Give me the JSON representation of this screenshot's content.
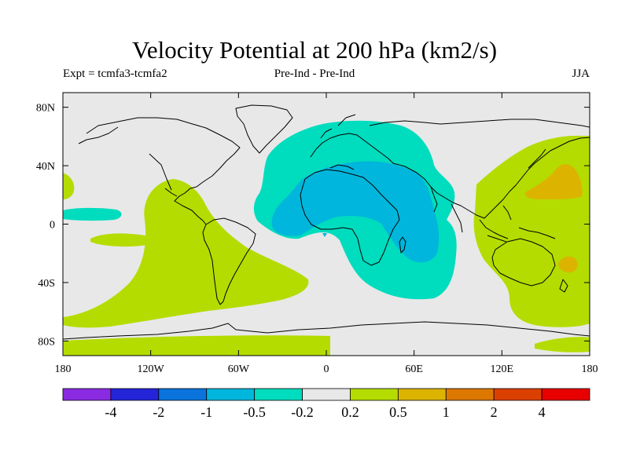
{
  "chart_data": {
    "type": "contour-map",
    "title": "Velocity Potential at 200 hPa (km2/s)",
    "subtitle_left": "Expt = tcmfa3-tcmfa2",
    "subtitle_center": "Pre-Ind - Pre-Ind",
    "subtitle_right": "JJA",
    "x_axis": {
      "range": [
        -180,
        180
      ],
      "ticks": [
        {
          "value": -180,
          "label": "180"
        },
        {
          "value": -120,
          "label": "120W"
        },
        {
          "value": -60,
          "label": "60W"
        },
        {
          "value": 0,
          "label": "0"
        },
        {
          "value": 60,
          "label": "60E"
        },
        {
          "value": 120,
          "label": "120E"
        },
        {
          "value": 180,
          "label": "180"
        }
      ]
    },
    "y_axis": {
      "range": [
        -90,
        90
      ],
      "ticks": [
        {
          "value": 80,
          "label": "80N"
        },
        {
          "value": 40,
          "label": "40N"
        },
        {
          "value": 0,
          "label": "0"
        },
        {
          "value": -40,
          "label": "40S"
        },
        {
          "value": -80,
          "label": "80S"
        }
      ]
    },
    "colorbar": {
      "colors": [
        "#8a2be2",
        "#2424d8",
        "#0a74dc",
        "#00b6dc",
        "#00dcbe",
        "#e8e8e8",
        "#b4dc00",
        "#dcb400",
        "#dc7800",
        "#dc4000",
        "#e80000"
      ],
      "labels": [
        "-4",
        "-2",
        "-1",
        "-0.5",
        "-0.2",
        "0.2",
        "0.5",
        "1",
        "2",
        "4"
      ]
    },
    "regions": [
      {
        "level": "-0.5 to -0.2",
        "color": "#00dcbe",
        "area": "Europe, N Africa, Middle East, Atlantic, S Africa, W Indian Ocean"
      },
      {
        "level": "-0.5 to -0.2",
        "color": "#00dcbe",
        "area": "Central-east Pacific near equator"
      },
      {
        "level": "-1 to -0.5",
        "color": "#00b6dc",
        "area": "N Africa, Middle East, E Africa, W Indian Ocean"
      },
      {
        "level": "0.2 to 0.5",
        "color": "#b4dc00",
        "area": "East Asia, W Pacific, Indonesia, Australia"
      },
      {
        "level": "0.2 to 0.5",
        "color": "#b4dc00",
        "area": "E Pacific, South America, S Atlantic"
      },
      {
        "level": "0.2 to 0.5",
        "color": "#b4dc00",
        "area": "Southern Ocean, Antarctic coast"
      },
      {
        "level": "0.5 to 1",
        "color": "#dcb400",
        "area": "NW Pacific near 30N 150E"
      },
      {
        "level": "0.5 to 1",
        "color": "#dcb400",
        "area": "SW Pacific near 30S 170E"
      }
    ]
  }
}
